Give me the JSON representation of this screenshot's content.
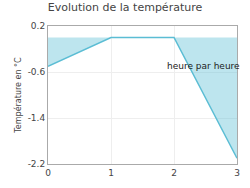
{
  "chart_data": {
    "type": "area",
    "title": "Evolution de la température",
    "y_label": "Température en °C",
    "x": [
      0,
      1,
      2,
      3
    ],
    "values": [
      -0.5,
      0.0,
      0.0,
      -2.1
    ],
    "color": "#5bbdd4",
    "xlim": [
      0,
      3
    ],
    "xticks": [
      0,
      1,
      2,
      3
    ],
    "ylim": [
      -2.2,
      0.2
    ],
    "yticks": [
      0.2,
      -0.6,
      -1.4,
      -2.2
    ],
    "grid": true,
    "annotations": [
      {
        "text": "heure par heure",
        "x": 1.85,
        "y": -0.38
      }
    ]
  }
}
